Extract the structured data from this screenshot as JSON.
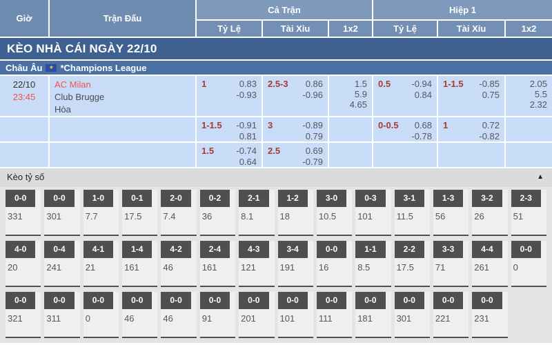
{
  "odds_table": {
    "headers": {
      "time": "Giờ",
      "match": "Trận Đấu",
      "full_match": "Cả Trận",
      "first_half": "Hiệp 1",
      "handicap": "Tỷ Lệ",
      "over_under": "Tài Xỉu",
      "one_x_two": "1x2"
    },
    "banner": "KÈO NHÀ CÁI NGÀY 22/10",
    "league": {
      "region": "Châu Âu",
      "flag_icon": "eu-flag-icon",
      "name": "*Champions League"
    },
    "match": {
      "date": "22/10",
      "time": "23:45",
      "teams": [
        "AC Milan",
        "Club Brugge",
        "Hòa"
      ]
    },
    "rows": [
      {
        "ft_hdp": "1",
        "ft_hdp_odds": [
          "0.83",
          "-0.93"
        ],
        "ft_ou": "2.5-3",
        "ft_ou_odds": [
          "0.86",
          "-0.96"
        ],
        "ft_1x2": [
          "1.5",
          "5.9",
          "4.65"
        ],
        "h1_hdp": "0.5",
        "h1_hdp_odds": [
          "-0.94",
          "0.84"
        ],
        "h1_ou": "1-1.5",
        "h1_ou_odds": [
          "-0.85",
          "0.75"
        ],
        "h1_1x2": [
          "2.05",
          "5.5",
          "2.32"
        ]
      },
      {
        "ft_hdp": "1-1.5",
        "ft_hdp_odds": [
          "-0.91",
          "0.81"
        ],
        "ft_ou": "3",
        "ft_ou_odds": [
          "-0.89",
          "0.79"
        ],
        "ft_1x2": [],
        "h1_hdp": "0-0.5",
        "h1_hdp_odds": [
          "0.68",
          "-0.78"
        ],
        "h1_ou": "1",
        "h1_ou_odds": [
          "0.72",
          "-0.82"
        ],
        "h1_1x2": []
      },
      {
        "ft_hdp": "1.5",
        "ft_hdp_odds": [
          "-0.74",
          "0.64"
        ],
        "ft_ou": "2.5",
        "ft_ou_odds": [
          "0.69",
          "-0.79"
        ],
        "ft_1x2": [],
        "h1_1x2": []
      }
    ]
  },
  "score_section": {
    "title": "Kèo tỷ số",
    "collapse_icon": "▲",
    "rows": [
      [
        {
          "score": "0-0",
          "odds": "331"
        },
        {
          "score": "0-0",
          "odds": "301"
        },
        {
          "score": "1-0",
          "odds": "7.7"
        },
        {
          "score": "0-1",
          "odds": "17.5"
        },
        {
          "score": "2-0",
          "odds": "7.4"
        },
        {
          "score": "0-2",
          "odds": "36"
        },
        {
          "score": "2-1",
          "odds": "8.1"
        },
        {
          "score": "1-2",
          "odds": "18"
        },
        {
          "score": "3-0",
          "odds": "10.5"
        },
        {
          "score": "0-3",
          "odds": "101"
        },
        {
          "score": "3-1",
          "odds": "11.5"
        },
        {
          "score": "1-3",
          "odds": "56"
        },
        {
          "score": "3-2",
          "odds": "26"
        },
        {
          "score": "2-3",
          "odds": "51"
        }
      ],
      [
        {
          "score": "4-0",
          "odds": "20"
        },
        {
          "score": "0-4",
          "odds": "241"
        },
        {
          "score": "4-1",
          "odds": "21"
        },
        {
          "score": "1-4",
          "odds": "161"
        },
        {
          "score": "4-2",
          "odds": "46"
        },
        {
          "score": "2-4",
          "odds": "161"
        },
        {
          "score": "4-3",
          "odds": "121"
        },
        {
          "score": "3-4",
          "odds": "191"
        },
        {
          "score": "0-0",
          "odds": "16"
        },
        {
          "score": "1-1",
          "odds": "8.5"
        },
        {
          "score": "2-2",
          "odds": "17.5"
        },
        {
          "score": "3-3",
          "odds": "71"
        },
        {
          "score": "4-4",
          "odds": "261"
        },
        {
          "score": "0-0",
          "odds": "0"
        }
      ],
      [
        {
          "score": "0-0",
          "odds": "321"
        },
        {
          "score": "0-0",
          "odds": "311"
        },
        {
          "score": "0-0",
          "odds": "0"
        },
        {
          "score": "0-0",
          "odds": "46"
        },
        {
          "score": "0-0",
          "odds": "46"
        },
        {
          "score": "0-0",
          "odds": "91"
        },
        {
          "score": "0-0",
          "odds": "201"
        },
        {
          "score": "0-0",
          "odds": "101"
        },
        {
          "score": "0-0",
          "odds": "111"
        },
        {
          "score": "0-0",
          "odds": "181"
        },
        {
          "score": "0-0",
          "odds": "301"
        },
        {
          "score": "0-0",
          "odds": "221"
        },
        {
          "score": "0-0",
          "odds": "231"
        }
      ]
    ]
  },
  "colors": {
    "header_blue": "#7390b4",
    "banner_blue": "#3e6190",
    "league_blue": "#4a71a1",
    "row_light_blue": "#c8dbf7",
    "accent_red": "#f0534e",
    "handicap_red": "#a93a32",
    "score_card_dark": "#4f4f4f"
  }
}
